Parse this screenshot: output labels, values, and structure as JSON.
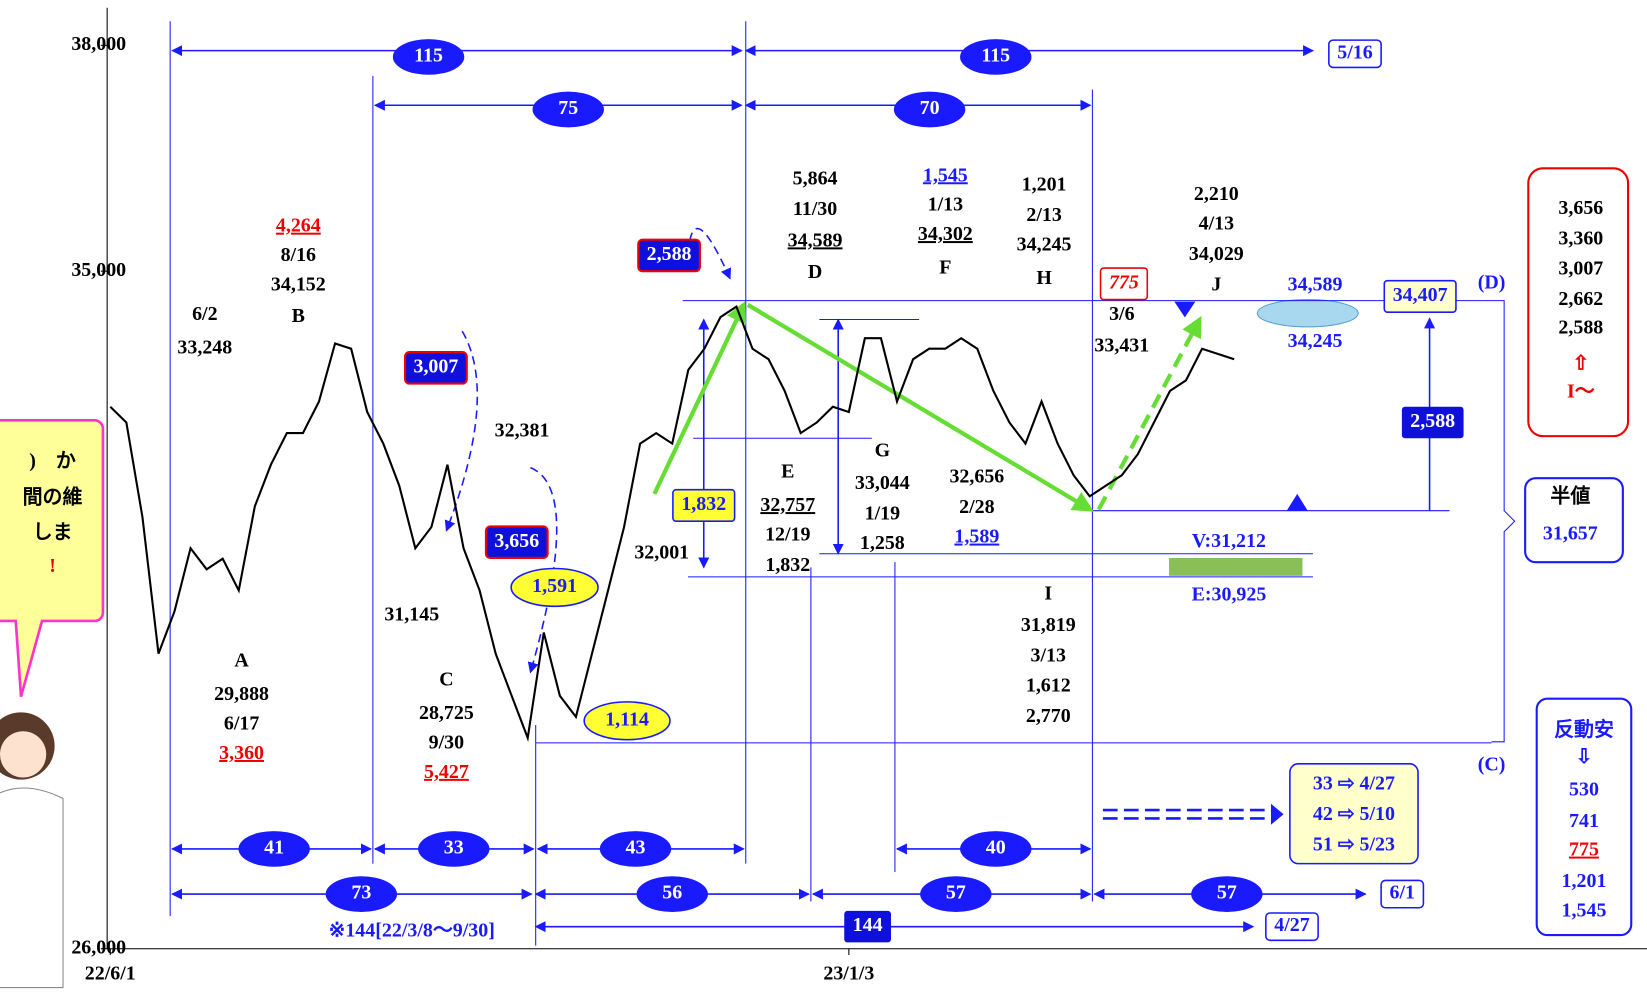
{
  "chart_data": {
    "type": "line",
    "categories": [
      "22/6/1",
      null,
      null,
      null,
      null,
      null,
      null,
      null,
      null,
      null,
      null,
      null,
      null,
      null,
      null,
      null,
      null,
      null,
      null,
      null,
      null,
      null,
      null,
      null,
      null,
      null,
      null,
      null,
      null,
      null,
      null,
      null,
      null,
      null,
      null,
      null,
      null,
      null,
      null,
      null,
      null,
      null,
      null,
      null,
      null,
      null,
      "23/1/3",
      null,
      null,
      null,
      null,
      null,
      null,
      null,
      null,
      null,
      null,
      null,
      null,
      null,
      null,
      null,
      null,
      null,
      null,
      null,
      null,
      null,
      null,
      null,
      null
    ],
    "values": [
      33200,
      32990,
      31735,
      29920,
      30480,
      31320,
      31040,
      31180,
      30760,
      31875,
      32430,
      32850,
      32850,
      33270,
      34040,
      33970,
      33130,
      32710,
      32150,
      31320,
      31600,
      32430,
      31320,
      30760,
      29920,
      29360,
      28800,
      30200,
      29360,
      29080,
      29920,
      30760,
      31600,
      32710,
      32850,
      32710,
      33690,
      33970,
      34390,
      34530,
      33970,
      33830,
      33410,
      32850,
      32990,
      33200,
      33130,
      34110,
      34110,
      33270,
      33830,
      33970,
      33970,
      34110,
      33970,
      33410,
      32990,
      32710,
      33270,
      32710,
      32290,
      32010,
      32150,
      32290,
      32570,
      32990,
      33410,
      33550,
      33970,
      33900,
      33830
    ],
    "color": "#000000",
    "ylim": [
      26000,
      38500
    ],
    "yticks": [
      {
        "value": 26000,
        "label": "26,000"
      },
      {
        "value": 35000,
        "label": "35,000"
      },
      {
        "value": 38000,
        "label": "38,000"
      }
    ],
    "annotations": [
      "6/2",
      "33,248",
      "4,264",
      "8/16",
      "34,152",
      "B",
      "A",
      "29,888",
      "6/17",
      "3,360",
      "31,145",
      "32,381",
      "C",
      "28,725",
      "9/30",
      "5,427",
      "32,001",
      "5,864",
      "11/30",
      "34,589",
      "D",
      "1,545",
      "1/13",
      "34,302",
      "F",
      "1,201",
      "2/13",
      "34,245",
      "H",
      "775",
      "3/6",
      "33,431",
      "2,210",
      "4/13",
      "34,029",
      "J",
      "E",
      "32,757",
      "12/19",
      "1,832",
      "G",
      "33,044",
      "1/19",
      "1,258",
      "32,656",
      "2/28",
      "1,589",
      "I",
      "31,819",
      "3/13",
      "1,612",
      "2,770",
      "V:31,212",
      "E:30,925",
      "34,589",
      "34,245",
      "※144[22/3/8〜9/30]",
      "115",
      "115",
      "5/16",
      "75",
      "70",
      "2,588",
      "3,007",
      "3,656",
      "1,591",
      "1,114",
      "1,832",
      "34,407",
      "(D)",
      "2,588",
      "半値",
      "31,657",
      "(C)",
      "反動安",
      "⇩",
      "530",
      "741",
      "775",
      "1,201",
      "1,545",
      "3,656",
      "3,360",
      "3,007",
      "2,662",
      "2,588",
      "⇧",
      "I〜",
      "33 ⇨ 4/27",
      "42 ⇨ 5/10",
      "51 ⇨ 5/23",
      "41",
      "33",
      "43",
      "40",
      "73",
      "56",
      "57",
      "57",
      "6/1",
      "144",
      "4/27",
      ")　か",
      "間の維",
      "しま",
      "!"
    ]
  }
}
